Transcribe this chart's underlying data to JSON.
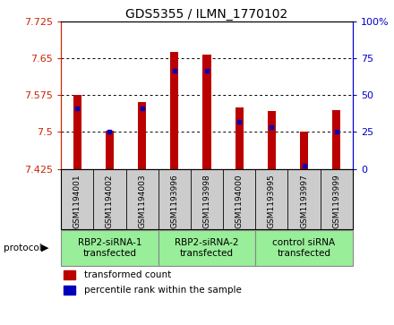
{
  "title": "GDS5355 / ILMN_1770102",
  "samples": [
    "GSM1194001",
    "GSM1194002",
    "GSM1194003",
    "GSM1193996",
    "GSM1193998",
    "GSM1194000",
    "GSM1193995",
    "GSM1193997",
    "GSM1193999"
  ],
  "bar_heights": [
    7.575,
    7.502,
    7.56,
    7.662,
    7.657,
    7.55,
    7.542,
    7.5,
    7.545
  ],
  "blue_dot_values": [
    7.548,
    7.5,
    7.548,
    7.624,
    7.624,
    7.521,
    7.51,
    7.432,
    7.5
  ],
  "ymin": 7.425,
  "ymax": 7.725,
  "yticks": [
    7.425,
    7.5,
    7.575,
    7.65,
    7.725
  ],
  "ytick_labels": [
    "7.425",
    "7.5",
    "7.575",
    "7.65",
    "7.725"
  ],
  "y2ticks": [
    0,
    25,
    50,
    75,
    100
  ],
  "y2tick_labels": [
    "0",
    "25",
    "50",
    "75",
    "100%"
  ],
  "y2min": 0,
  "y2max": 100,
  "bar_color": "#bb0000",
  "dot_color": "#0000bb",
  "bar_bottom": 7.425,
  "bar_width": 0.25,
  "groups": [
    {
      "label": "RBP2-siRNA-1\ntransfected",
      "indices": [
        0,
        1,
        2
      ]
    },
    {
      "label": "RBP2-siRNA-2\ntransfected",
      "indices": [
        3,
        4,
        5
      ]
    },
    {
      "label": "control siRNA\ntransfected",
      "indices": [
        6,
        7,
        8
      ]
    }
  ],
  "group_color": "#99ee99",
  "group_border_color": "#888888",
  "sample_cell_color": "#cccccc",
  "sample_cell_border_color": "#888888",
  "protocol_label": "protocol",
  "legend_items": [
    {
      "label": "transformed count",
      "color": "#bb0000"
    },
    {
      "label": "percentile rank within the sample",
      "color": "#0000bb"
    }
  ],
  "tick_color_left": "#cc2200",
  "tick_color_right": "#0000cc",
  "dotted_grid_ticks": [
    7.5,
    7.575,
    7.65
  ],
  "dot_marker": "s",
  "dot_size": 3
}
